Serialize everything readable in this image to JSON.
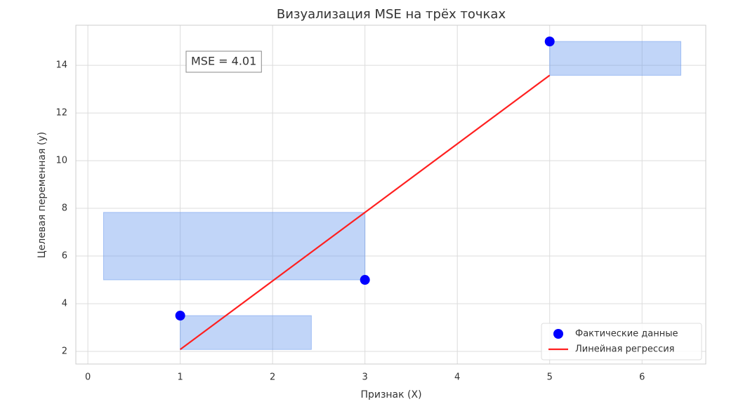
{
  "chart_data": {
    "type": "scatter",
    "title": "Визуализация MSE на трёх точках",
    "x_label": "Признак (X)",
    "y_label": "Целевая переменная (y)",
    "annotation": "MSE = 4.01",
    "xlim": [
      -0.13,
      6.69
    ],
    "xticks": [
      0,
      1,
      2,
      3,
      4,
      5,
      6
    ],
    "ylim": [
      1.47,
      15.68
    ],
    "yticks": [
      2,
      4,
      6,
      8,
      10,
      12,
      14
    ],
    "grid": true,
    "legend": "lower right",
    "series": [
      {
        "name": "Фактические данные",
        "type": "scatter",
        "color": "#0000ff",
        "x": [
          1,
          3,
          5
        ],
        "values": [
          3.5,
          5,
          15
        ]
      },
      {
        "name": "Линейная регрессия",
        "type": "line",
        "color": "#ff2020",
        "x": [
          1,
          3,
          5
        ],
        "values": [
          2.08,
          7.83,
          13.58
        ]
      }
    ],
    "squares_color": "#6495ed",
    "squares": [
      {
        "x": [
          1,
          2.42
        ],
        "y": [
          2.08,
          3.5
        ]
      },
      {
        "x": [
          0.17,
          3
        ],
        "y": [
          5,
          7.83
        ]
      },
      {
        "x": [
          5,
          6.42
        ],
        "y": [
          13.58,
          15
        ]
      }
    ]
  }
}
